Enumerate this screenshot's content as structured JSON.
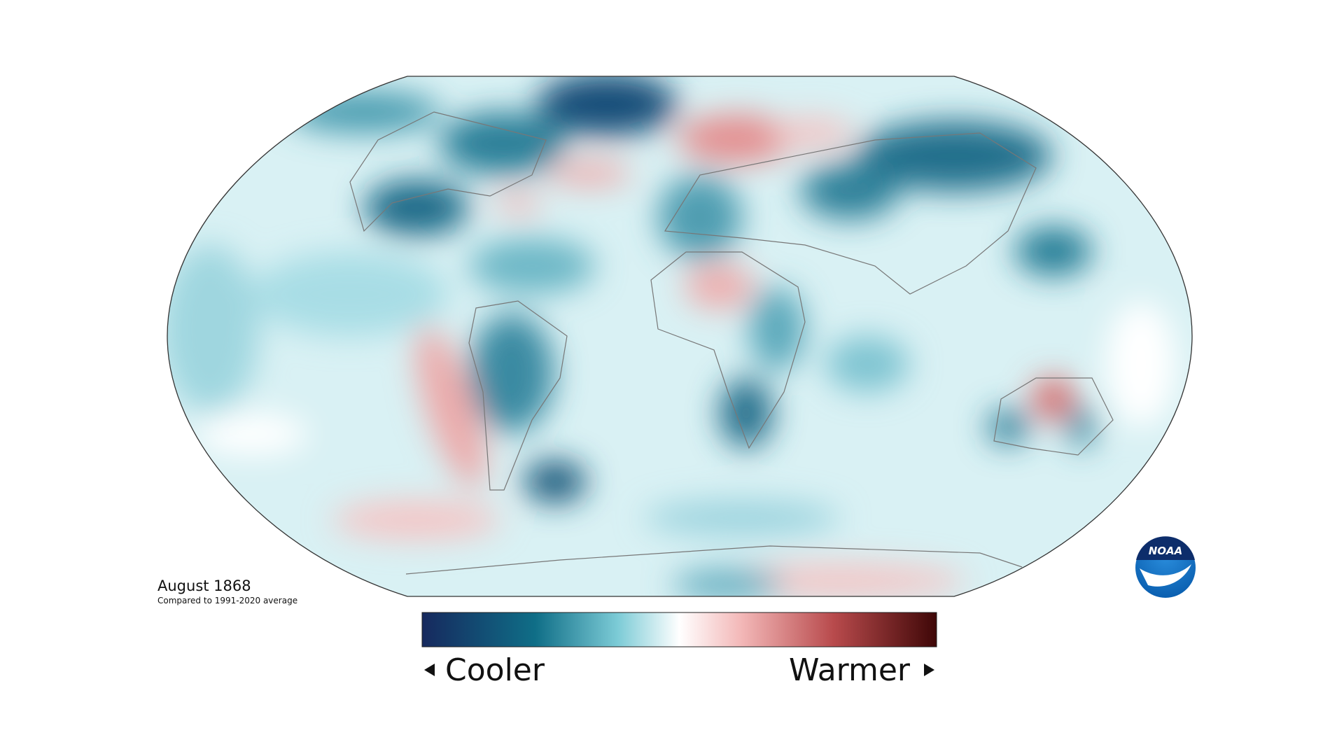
{
  "map": {
    "title": "August 1868",
    "subtitle": "Compared to 1991-2020 average"
  },
  "legend": {
    "low_label": "Cooler",
    "high_label": "Warmer"
  },
  "logo": {
    "text": "NOAA"
  }
}
